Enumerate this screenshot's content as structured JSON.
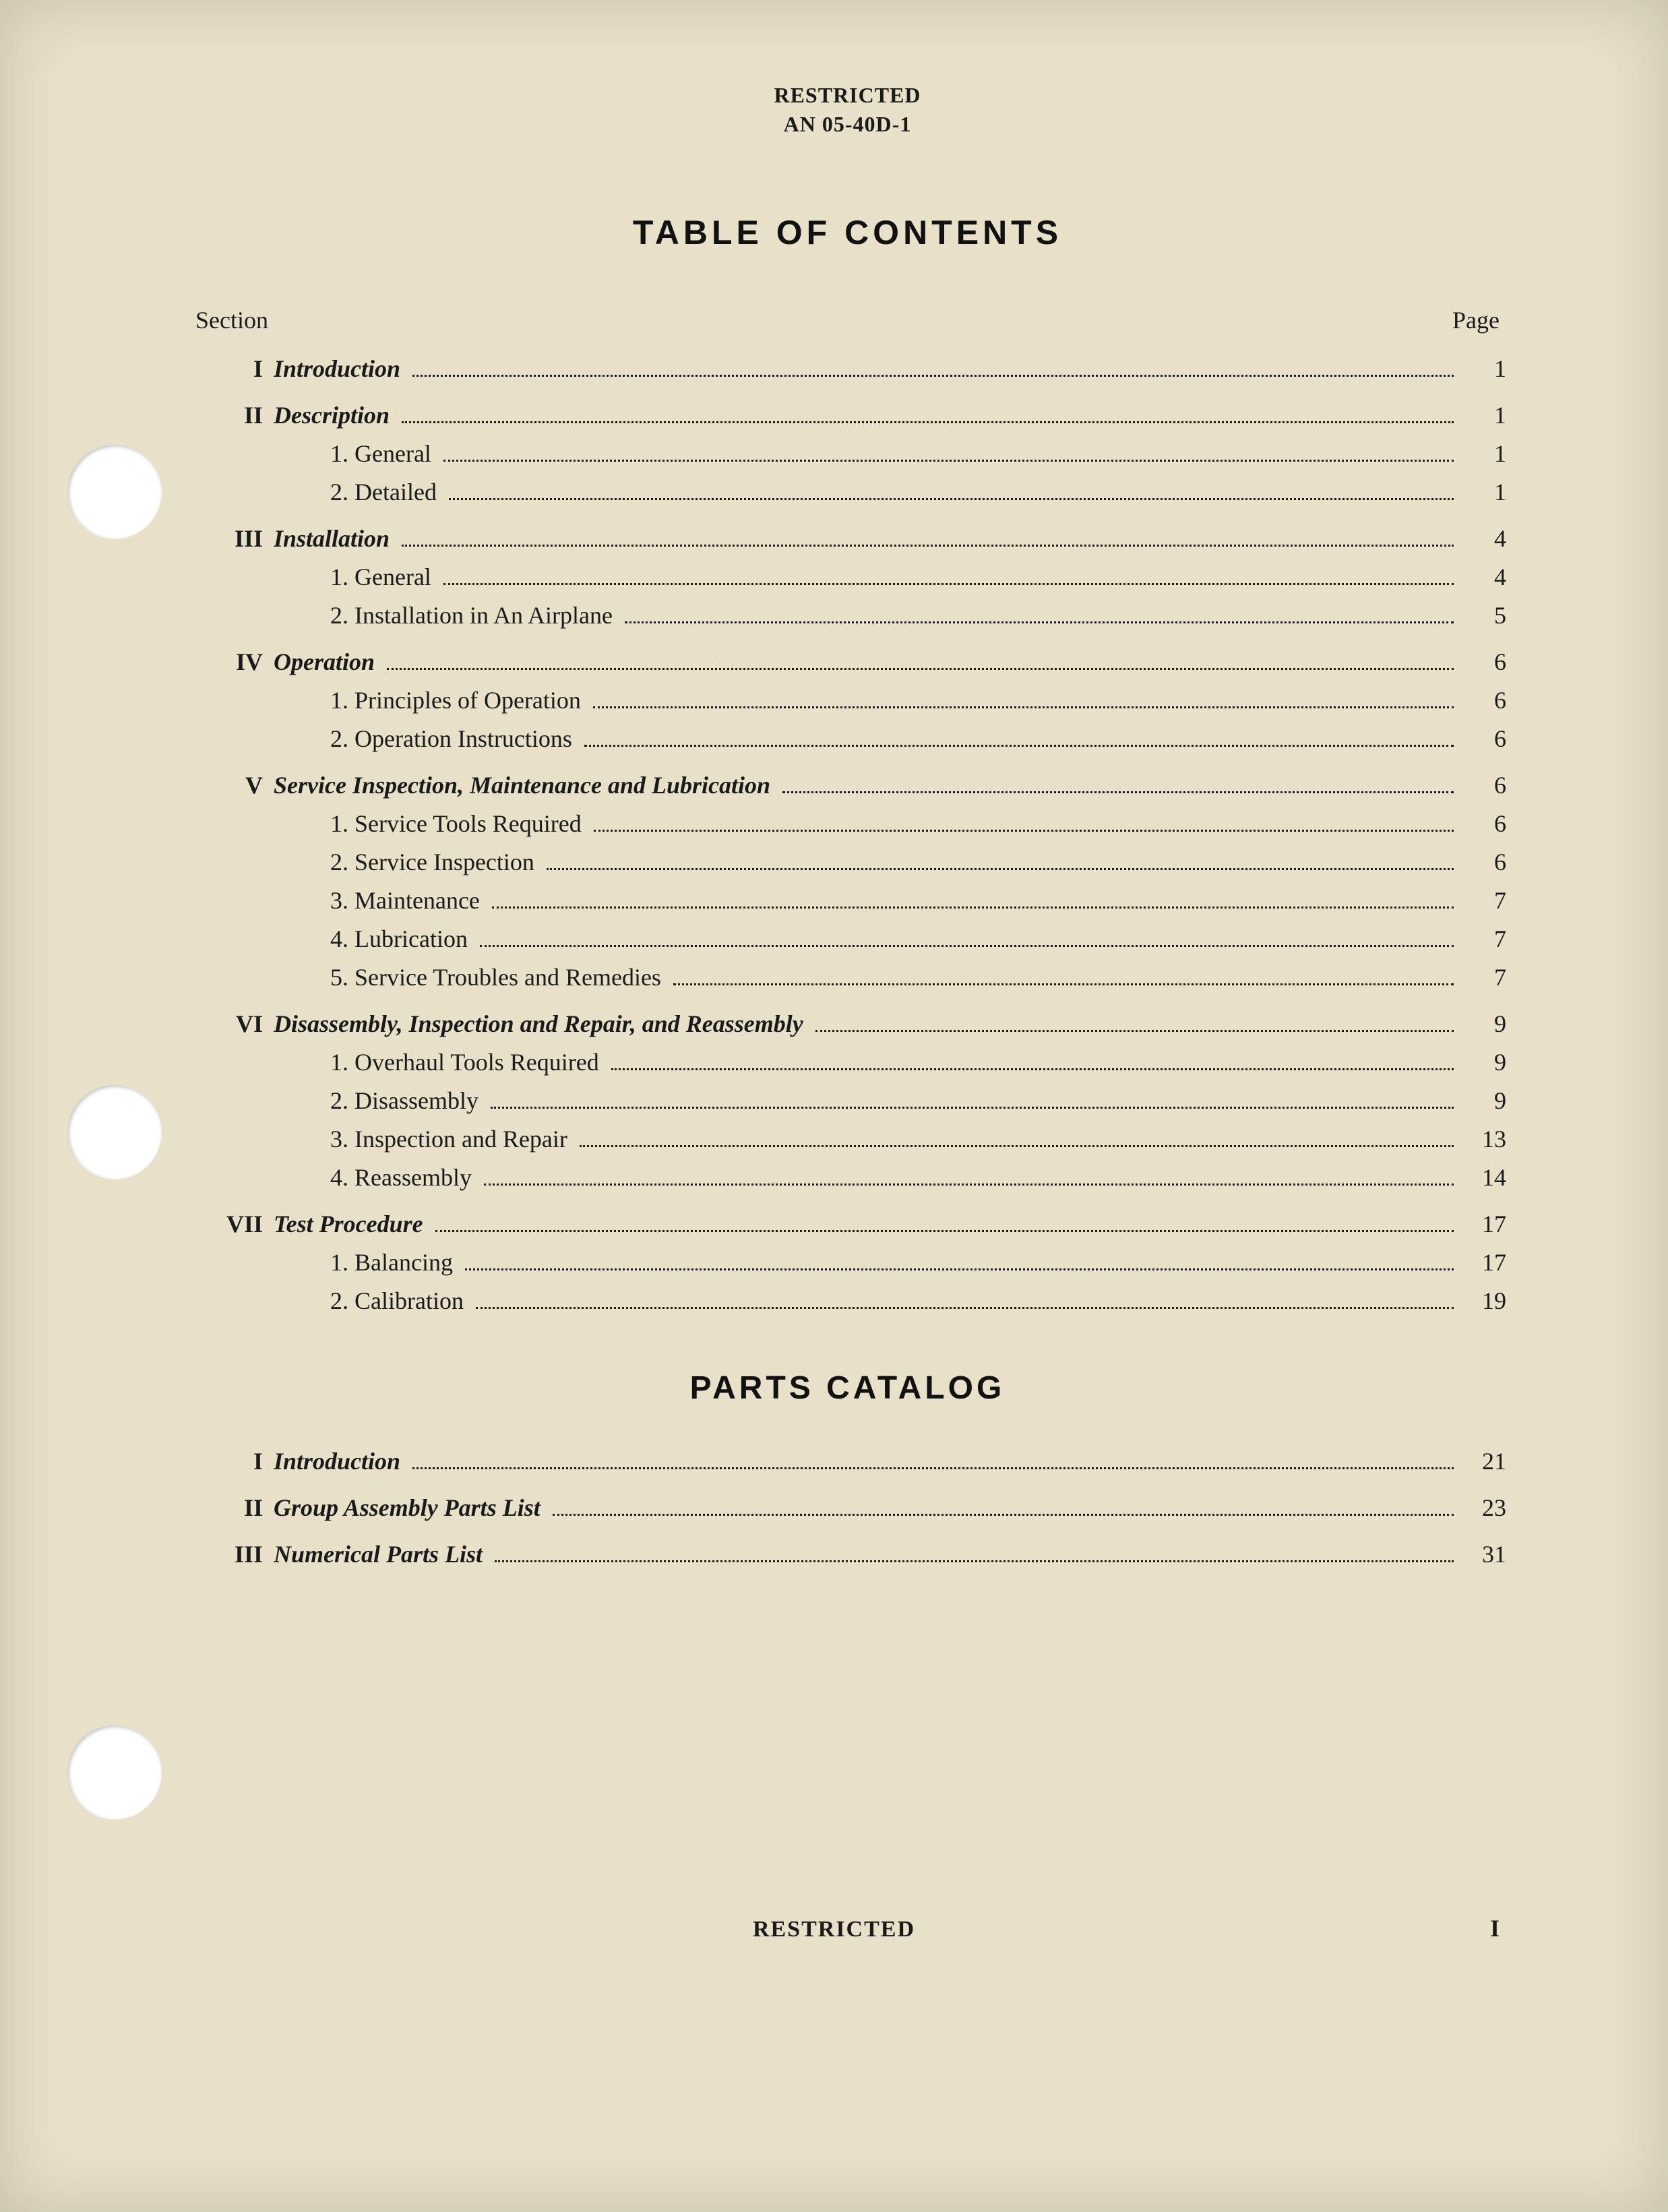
{
  "header": {
    "classification": "RESTRICTED",
    "doc_number": "AN 05-40D-1"
  },
  "title_main": "TABLE OF CONTENTS",
  "title_parts": "PARTS CATALOG",
  "col_section": "Section",
  "col_page": "Page",
  "footer_classification": "RESTRICTED",
  "page_marker": "I",
  "holes_y": [
    660,
    1610,
    2560
  ],
  "toc_main": [
    {
      "num": "I",
      "title": "Introduction",
      "page": "1",
      "subs": []
    },
    {
      "num": "II",
      "title": "Description",
      "page": "1",
      "subs": [
        {
          "label": "1. General",
          "page": "1"
        },
        {
          "label": "2. Detailed",
          "page": "1"
        }
      ]
    },
    {
      "num": "III",
      "title": "Installation",
      "page": "4",
      "subs": [
        {
          "label": "1. General",
          "page": "4"
        },
        {
          "label": "2. Installation in An Airplane",
          "page": "5"
        }
      ]
    },
    {
      "num": "IV",
      "title": "Operation",
      "page": "6",
      "subs": [
        {
          "label": "1. Principles of Operation",
          "page": "6"
        },
        {
          "label": "2. Operation Instructions",
          "page": "6"
        }
      ]
    },
    {
      "num": "V",
      "title": "Service Inspection, Maintenance and Lubrication",
      "page": "6",
      "subs": [
        {
          "label": "1. Service Tools Required",
          "page": "6"
        },
        {
          "label": "2. Service Inspection",
          "page": "6"
        },
        {
          "label": "3. Maintenance",
          "page": "7"
        },
        {
          "label": "4. Lubrication",
          "page": "7"
        },
        {
          "label": "5. Service Troubles and Remedies",
          "page": "7"
        }
      ]
    },
    {
      "num": "VI",
      "title": "Disassembly, Inspection and Repair, and Reassembly",
      "page": "9",
      "subs": [
        {
          "label": "1. Overhaul Tools Required",
          "page": "9"
        },
        {
          "label": "2. Disassembly",
          "page": "9"
        },
        {
          "label": "3. Inspection and Repair",
          "page": "13"
        },
        {
          "label": "4. Reassembly",
          "page": "14"
        }
      ]
    },
    {
      "num": "VII",
      "title": "Test Procedure",
      "page": "17",
      "subs": [
        {
          "label": "1. Balancing",
          "page": "17"
        },
        {
          "label": "2. Calibration",
          "page": "19"
        }
      ]
    }
  ],
  "toc_parts": [
    {
      "num": "I",
      "title": "Introduction",
      "page": "21",
      "subs": []
    },
    {
      "num": "II",
      "title": "Group Assembly Parts List",
      "page": "23",
      "subs": []
    },
    {
      "num": "III",
      "title": "Numerical Parts List",
      "page": "31",
      "subs": []
    }
  ]
}
